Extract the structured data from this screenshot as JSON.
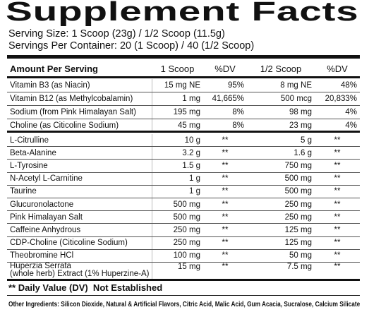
{
  "title": "Supplement Facts",
  "serving_size": "Serving Size: 1 Scoop (23g) / 1/2 Scoop (11.5g)",
  "servings_per_container": "Servings Per Container: 20 (1 Scoop) / 40 (1/2 Scoop)",
  "header": [
    "Amount Per Serving",
    "1 Scoop",
    "%DV",
    "1/2 Scoop",
    "%DV"
  ],
  "vitamins": [
    [
      "Vitamin B3 (as Niacin)",
      "15 mg NE",
      "95%",
      "8 mg NE",
      "48%"
    ],
    [
      "Vitamin B12 (as Methylcobalamin)",
      "1 mg",
      "41,665%",
      "500 mcg",
      "20,833%"
    ],
    [
      "Sodium (from Pink Himalayan Salt)",
      "195 mg",
      "8%",
      "98 mg",
      "4%"
    ],
    [
      "Choline (as Citicoline Sodium)",
      "45 mg",
      "8%",
      "23 mg",
      "4%"
    ]
  ],
  "ingredients": [
    [
      "L-Citrulline",
      "10 g",
      "**",
      "5 g",
      "**"
    ],
    [
      "Beta-Alanine",
      "3.2 g",
      "**",
      "1.6 g",
      "**"
    ],
    [
      "L-Tyrosine",
      "1.5 g",
      "**",
      "750 mg",
      "**"
    ],
    [
      "N-Acetyl L-Carnitine",
      "1 g",
      "**",
      "500 mg",
      "**"
    ],
    [
      "Taurine",
      "1 g",
      "**",
      "500 mg",
      "**"
    ],
    [
      "Glucuronolactone",
      "500 mg",
      "**",
      "250 mg",
      "**"
    ],
    [
      "Pink Himalayan Salt",
      "500 mg",
      "**",
      "250 mg",
      "**"
    ],
    [
      "Caffeine Anhydrous",
      "250 mg",
      "**",
      "125 mg",
      "**"
    ],
    [
      "CDP-Choline (Citicoline Sodium)",
      "250 mg",
      "**",
      "125 mg",
      "**"
    ],
    [
      "Theobromine HCl",
      "100 mg",
      "**",
      "50 mg",
      "**"
    ],
    [
      "Huperzia Serrata\n(whole herb) Extract (1% Huperzine-A)",
      "15 mg",
      "**",
      "7.5 mg",
      "**"
    ]
  ],
  "footnote": "** Daily Value (DV)  Not Established",
  "other_ingredients": "Other Ingredients: Silicon Dioxide, Natural & Artificial Flavors, Citric Acid, Malic Acid, Gum Acacia, Sucralose, Calcium Silicate"
}
